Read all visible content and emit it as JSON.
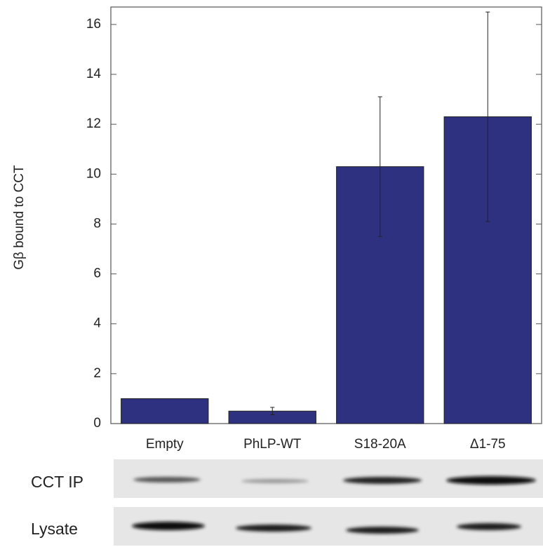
{
  "chart_data": {
    "type": "bar",
    "ylabel": "Gβ bound to CCT",
    "categories": [
      "Empty",
      "PhLP-WT",
      "S18-20A",
      "Δ1-75"
    ],
    "values": [
      1.0,
      0.5,
      10.3,
      12.3
    ],
    "errors": [
      null,
      0.15,
      2.8,
      4.2
    ],
    "color": "#2e3180",
    "ylim": [
      0,
      16.7
    ],
    "yticks": [
      0,
      2,
      4,
      6,
      8,
      10,
      12,
      14,
      16
    ],
    "grid": false
  },
  "blots": [
    {
      "label": "CCT IP"
    },
    {
      "label": "Lysate"
    }
  ]
}
